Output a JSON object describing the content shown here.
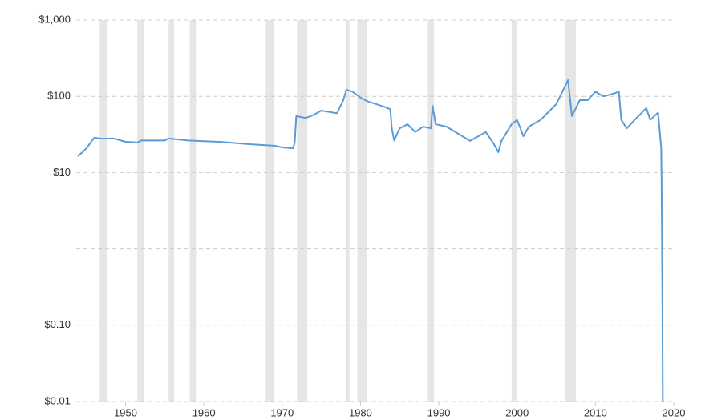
{
  "chart_data": {
    "type": "line",
    "log_scale_y": true,
    "grid": true,
    "ylim": [
      0.01,
      1000
    ],
    "yticks": [
      {
        "value": 0.01,
        "label": "$0.01"
      },
      {
        "value": 0.1,
        "label": "$0.10"
      },
      {
        "value": 1,
        "label": null
      },
      {
        "value": 10,
        "label": "$10"
      },
      {
        "value": 100,
        "label": "$100"
      },
      {
        "value": 1000,
        "label": "$1,000"
      }
    ],
    "xlim": [
      1943.7,
      2020
    ],
    "xticks": [
      1950,
      1960,
      1970,
      1980,
      1990,
      2000,
      2010,
      2020
    ],
    "shaded_ranges": [
      [
        1946.7,
        1947.6
      ],
      [
        1951.5,
        1952.4
      ],
      [
        1955.5,
        1956.2
      ],
      [
        1958.2,
        1959.0
      ],
      [
        1967.9,
        1968.9
      ],
      [
        1971.9,
        1973.2
      ],
      [
        1978.1,
        1978.6
      ],
      [
        1979.6,
        1980.8
      ],
      [
        1988.6,
        1989.4
      ],
      [
        1999.3,
        2000.0
      ],
      [
        2006.1,
        2007.5
      ]
    ],
    "shade_color": "#e6e6e6",
    "x": [
      1943.9,
      1944.5,
      1945,
      1946,
      1947,
      1948.5,
      1950,
      1951.5,
      1952,
      1955,
      1955.5,
      1958,
      1962,
      1966,
      1969,
      1970,
      1971.4,
      1971.6,
      1971.8,
      1973,
      1974,
      1975,
      1977,
      1977.8,
      1978.2,
      1979,
      1980,
      1981,
      1982,
      1983,
      1983.8,
      1984,
      1984.3,
      1985,
      1986,
      1987,
      1988,
      1989,
      1989.2,
      1989.6,
      1991,
      1993,
      1994,
      1996,
      1997,
      1997.6,
      1998,
      1999.3,
      2000,
      2000.8,
      2001.5,
      2003,
      2005,
      2006.5,
      2007,
      2008,
      2009,
      2010,
      2011,
      2012,
      2013,
      2013.3,
      2014,
      2015,
      2016.5,
      2017,
      2018,
      2018.4,
      2018.45,
      2018.55,
      2018.6
    ],
    "series": [
      {
        "color": "#5b9bd5",
        "values": [
          16.4,
          18.5,
          20.8,
          28.6,
          27.8,
          28,
          25.3,
          24.8,
          26.3,
          26.3,
          28,
          26.3,
          25.3,
          23.5,
          22.5,
          21.4,
          20.8,
          24.8,
          55,
          52,
          57,
          65,
          60,
          89,
          122,
          115,
          96,
          85,
          79,
          73,
          68,
          38,
          26.3,
          38,
          43,
          34,
          40,
          38,
          75,
          43,
          40,
          30,
          26,
          34,
          24,
          18.5,
          26,
          43,
          49,
          30,
          40,
          49,
          79,
          163,
          55,
          89,
          89,
          115,
          100,
          106,
          115,
          49,
          38,
          49,
          70,
          49,
          61,
          20.8,
          7,
          0.186,
          0.01
        ]
      }
    ]
  }
}
